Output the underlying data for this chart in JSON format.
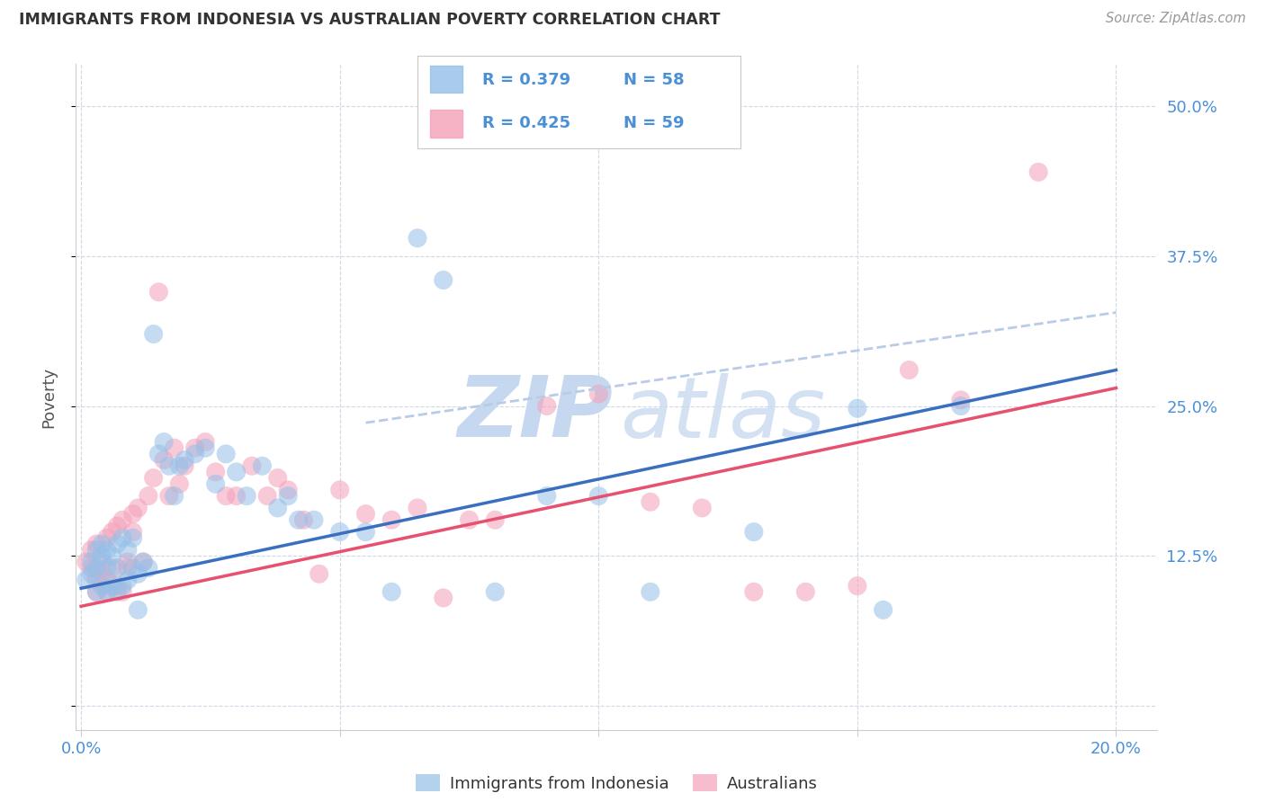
{
  "title": "IMMIGRANTS FROM INDONESIA VS AUSTRALIAN POVERTY CORRELATION CHART",
  "source": "Source: ZipAtlas.com",
  "ylabel": "Poverty",
  "legend_blue_text": "R = 0.379   N = 58",
  "legend_pink_text": "R = 0.425   N = 59",
  "legend_label_blue": "Immigrants from Indonesia",
  "legend_label_pink": "Australians",
  "color_blue": "#94bfe8",
  "color_pink": "#f4a0b8",
  "color_line_blue": "#3a6fc0",
  "color_line_pink": "#e85070",
  "color_dashed": "#b8cce8",
  "color_text": "#4a90d9",
  "color_legend_text": "#222222",
  "background": "#ffffff",
  "x_blue": [
    0.001,
    0.002,
    0.002,
    0.003,
    0.003,
    0.003,
    0.004,
    0.004,
    0.004,
    0.005,
    0.005,
    0.005,
    0.006,
    0.006,
    0.007,
    0.007,
    0.007,
    0.008,
    0.008,
    0.009,
    0.009,
    0.01,
    0.01,
    0.011,
    0.011,
    0.012,
    0.013,
    0.014,
    0.015,
    0.016,
    0.017,
    0.018,
    0.019,
    0.02,
    0.022,
    0.024,
    0.026,
    0.028,
    0.03,
    0.032,
    0.035,
    0.038,
    0.04,
    0.042,
    0.045,
    0.05,
    0.055,
    0.06,
    0.065,
    0.07,
    0.08,
    0.09,
    0.1,
    0.11,
    0.13,
    0.15,
    0.155,
    0.17
  ],
  "y_blue": [
    0.105,
    0.11,
    0.12,
    0.095,
    0.115,
    0.13,
    0.1,
    0.125,
    0.135,
    0.095,
    0.115,
    0.13,
    0.1,
    0.125,
    0.095,
    0.115,
    0.135,
    0.1,
    0.14,
    0.105,
    0.13,
    0.115,
    0.14,
    0.11,
    0.08,
    0.12,
    0.115,
    0.31,
    0.21,
    0.22,
    0.2,
    0.175,
    0.2,
    0.205,
    0.21,
    0.215,
    0.185,
    0.21,
    0.195,
    0.175,
    0.2,
    0.165,
    0.175,
    0.155,
    0.155,
    0.145,
    0.145,
    0.095,
    0.39,
    0.355,
    0.095,
    0.175,
    0.175,
    0.095,
    0.145,
    0.248,
    0.08,
    0.25
  ],
  "x_pink": [
    0.001,
    0.002,
    0.002,
    0.003,
    0.003,
    0.003,
    0.004,
    0.004,
    0.005,
    0.005,
    0.005,
    0.006,
    0.006,
    0.007,
    0.007,
    0.008,
    0.008,
    0.009,
    0.009,
    0.01,
    0.01,
    0.011,
    0.012,
    0.013,
    0.014,
    0.015,
    0.016,
    0.017,
    0.018,
    0.019,
    0.02,
    0.022,
    0.024,
    0.026,
    0.028,
    0.03,
    0.033,
    0.036,
    0.038,
    0.04,
    0.043,
    0.046,
    0.05,
    0.055,
    0.06,
    0.065,
    0.07,
    0.075,
    0.08,
    0.09,
    0.1,
    0.11,
    0.12,
    0.13,
    0.14,
    0.15,
    0.16,
    0.17,
    0.185
  ],
  "y_pink": [
    0.12,
    0.115,
    0.13,
    0.105,
    0.135,
    0.095,
    0.12,
    0.11,
    0.095,
    0.14,
    0.105,
    0.145,
    0.115,
    0.1,
    0.15,
    0.095,
    0.155,
    0.12,
    0.115,
    0.16,
    0.145,
    0.165,
    0.12,
    0.175,
    0.19,
    0.345,
    0.205,
    0.175,
    0.215,
    0.185,
    0.2,
    0.215,
    0.22,
    0.195,
    0.175,
    0.175,
    0.2,
    0.175,
    0.19,
    0.18,
    0.155,
    0.11,
    0.18,
    0.16,
    0.155,
    0.165,
    0.09,
    0.155,
    0.155,
    0.25,
    0.26,
    0.17,
    0.165,
    0.095,
    0.095,
    0.1,
    0.28,
    0.255,
    0.445
  ],
  "blue_line_x": [
    0.0,
    0.2
  ],
  "blue_line_y": [
    0.098,
    0.28
  ],
  "pink_line_x": [
    0.0,
    0.2
  ],
  "pink_line_y": [
    0.083,
    0.265
  ],
  "dashed_line_x": [
    0.055,
    0.2
  ],
  "dashed_line_y": [
    0.236,
    0.328
  ],
  "xlim": [
    -0.001,
    0.208
  ],
  "ylim": [
    -0.02,
    0.535
  ],
  "ytick_positions": [
    0.0,
    0.125,
    0.25,
    0.375,
    0.5
  ],
  "ytick_labels": [
    "",
    "12.5%",
    "25.0%",
    "37.5%",
    "50.0%"
  ],
  "xtick_positions": [
    0.0,
    0.05,
    0.1,
    0.15,
    0.2
  ],
  "xtick_labels": [
    "0.0%",
    "",
    "",
    "",
    "20.0%"
  ]
}
